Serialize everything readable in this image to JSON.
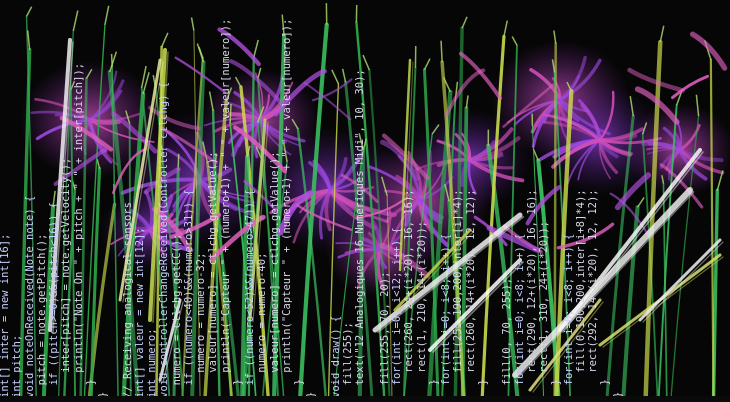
{
  "code_columns": [
    {
      "lines": [
        "int[] inter = new int[16];",
        "int pitch;",
        "void noteOnReceived(Note note) {",
        "  pitch = note.getPitch();",
        "  if ((pitch>=0)&&(pitch<16)) {",
        "    inter[pitch] = note.getVelocity();",
        "    println(\"Note On \" + pitch + \" \" + inter[pitch]);",
        "  }",
        "}",
        "",
        "// Receiving analogical sensors",
        "int[] valeur = new int[12];",
        "int numero;",
        "void controllerChangeReceived(Controller ctlchg) {",
        "  numero = ctlchg.getCC();",
        "  if ((numero<40)&&(numero>31)) {",
        "    numero = numero-32;",
        "    valeur[numero] = ctlchg.getValue();",
        "    println(\"Capteur \" + (numero+1) + \" \" + valeur[numero]);",
        "  }",
        "  if ((numero<52)&&(numero>47)) {",
        "    numero = numero-40;",
        "    valeur[numero] = ctlchg.getValue();",
        "    println(\"Capteur \" + (numero+1) + \" \" + valeur[numero]);",
        "  }",
        "}",
        "",
        "void draw() {",
        "  fill(255);",
        "  text(\"12 Analogiques 16 Numeriques Midi\", 10, 30);",
        "",
        "  fill(255, 70, 20);",
        "  for(int i=0; i<12; i++) {",
        "    rect(260, 24+(i*20), 16, 16);",
        "    rect(1, 210, 14+(i*20));",
        "  }",
        "  for(int i=0; i<8; i++) {",
        "    fill(255,190,200,inter[i]*4);",
        "    rect(260, 14+(i*20), 12, 12);",
        "  }",
        "",
        "  fill(0, 70, 255);",
        "  for(int i=0; i<8; i++) {",
        "    rect(290, 12+(i*20), 16, 16);",
        "    rect(1, 310, 24+(i*20));",
        "  }",
        "  for(int i=0; i<8; i++) {",
        "    fill(0,190,200,inter[i+8]*4);",
        "    rect(292, 14+(i*20), 12, 12);",
        "  }",
        "}"
      ]
    }
  ],
  "colors": {
    "background": "#060606",
    "code_text": "#d8d8e8",
    "keyword": "#5a9cf0",
    "grass_green": "#2fa84a",
    "grass_yellow": "#c8d84a",
    "plant_pink": "#c04aa8",
    "plant_violet": "#8a3ad0",
    "highlight_white": "#f0f0f0"
  }
}
